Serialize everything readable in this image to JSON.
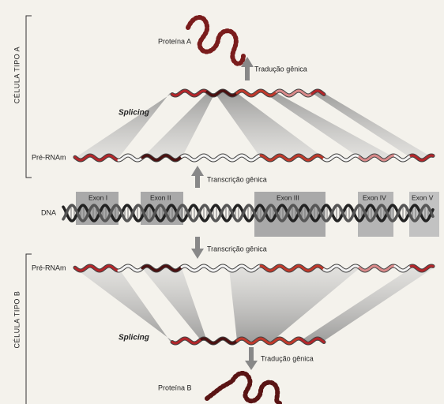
{
  "cell_a": {
    "label": "CÉLULA TIPO A",
    "protein": "Proteína A",
    "translation": "Tradução gênica",
    "splicing": "Splicing",
    "pre_mrna": "Pré-RNAm",
    "transcription": "Transcrição gênica"
  },
  "dna": {
    "label": "DNA",
    "exons": [
      "Exon I",
      "Exon II",
      "Exon III",
      "Exon IV",
      "Exon V"
    ]
  },
  "cell_b": {
    "label": "CÉLULA TIPO B",
    "protein": "Proteína B",
    "translation": "Tradução gênica",
    "splicing": "Splicing",
    "pre_mrna": "Pré-RNAm",
    "transcription": "Transcrição gênica"
  }
}
